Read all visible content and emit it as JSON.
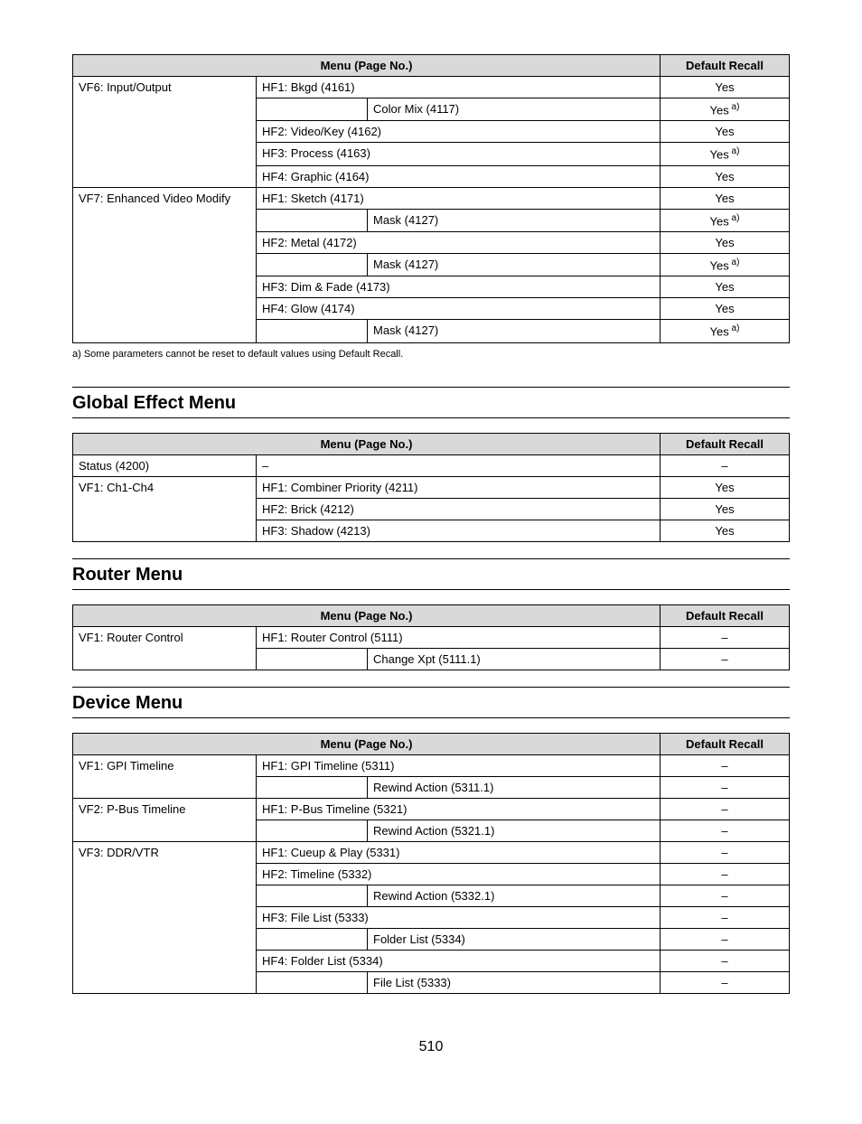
{
  "table1": {
    "headers": {
      "menu": "Menu (Page No.)",
      "recall": "Default Recall"
    },
    "rows": [
      {
        "c1": "VF6: Input/Output",
        "c2": "HF1: Bkgd (4161)",
        "recall": "Yes",
        "c1rowspan": 5,
        "c2colspan": 2
      },
      {
        "indent": "Color Mix (4117)",
        "recall": "Yes",
        "sup": "a)"
      },
      {
        "c2": "HF2: Video/Key (4162)",
        "recall": "Yes",
        "c2colspan": 2
      },
      {
        "c2": "HF3: Process (4163)",
        "recall": "Yes",
        "sup": "a)",
        "c2colspan": 2
      },
      {
        "c2": "HF4: Graphic (4164)",
        "recall": "Yes",
        "c2colspan": 2
      },
      {
        "c1": "VF7: Enhanced Video Modify",
        "c2": "HF1: Sketch (4171)",
        "recall": "Yes",
        "c1rowspan": 7,
        "c2colspan": 2
      },
      {
        "indent": "Mask (4127)",
        "recall": "Yes",
        "sup": "a)"
      },
      {
        "c2": "HF2: Metal (4172)",
        "recall": "Yes",
        "c2colspan": 2
      },
      {
        "indent": "Mask (4127)",
        "recall": "Yes",
        "sup": "a)"
      },
      {
        "c2": "HF3: Dim & Fade (4173)",
        "recall": "Yes",
        "c2colspan": 2
      },
      {
        "c2": "HF4: Glow (4174)",
        "recall": "Yes",
        "c2colspan": 2
      },
      {
        "indent": "Mask (4127)",
        "recall": "Yes",
        "sup": "a)"
      }
    ],
    "footnote": "a) Some parameters cannot be reset to default values using Default Recall."
  },
  "section2": {
    "title": "Global Effect Menu"
  },
  "table2": {
    "headers": {
      "menu": "Menu (Page No.)",
      "recall": "Default Recall"
    },
    "rows": [
      {
        "c1": "Status (4200)",
        "c2": "–",
        "recall": "–",
        "c2colspan": 2
      },
      {
        "c1": "VF1: Ch1-Ch4",
        "c2": "HF1: Combiner Priority (4211)",
        "recall": "Yes",
        "c1rowspan": 3,
        "c2colspan": 2
      },
      {
        "c2": "HF2: Brick (4212)",
        "recall": "Yes",
        "c2colspan": 2
      },
      {
        "c2": "HF3: Shadow (4213)",
        "recall": "Yes",
        "c2colspan": 2
      }
    ]
  },
  "section3": {
    "title": "Router Menu"
  },
  "table3": {
    "headers": {
      "menu": "Menu (Page No.)",
      "recall": "Default Recall"
    },
    "rows": [
      {
        "c1": "VF1: Router Control",
        "c2": "HF1: Router Control (5111)",
        "recall": "–",
        "c1rowspan": 2,
        "c2colspan": 2
      },
      {
        "indent": "Change Xpt (5111.1)",
        "recall": "–"
      }
    ]
  },
  "section4": {
    "title": "Device Menu"
  },
  "table4": {
    "headers": {
      "menu": "Menu (Page No.)",
      "recall": "Default Recall"
    },
    "rows": [
      {
        "c1": "VF1: GPI Timeline",
        "c2": "HF1: GPI Timeline (5311)",
        "recall": "–",
        "c1rowspan": 2,
        "c2colspan": 2
      },
      {
        "indent": "Rewind Action (5311.1)",
        "recall": "–"
      },
      {
        "c1": "VF2: P-Bus Timeline",
        "c2": "HF1: P-Bus Timeline (5321)",
        "recall": "–",
        "c1rowspan": 2,
        "c2colspan": 2
      },
      {
        "indent": "Rewind Action (5321.1)",
        "recall": "–"
      },
      {
        "c1": "VF3: DDR/VTR",
        "c2": "HF1: Cueup & Play (5331)",
        "recall": "–",
        "c1rowspan": 7,
        "c2colspan": 2
      },
      {
        "c2": "HF2: Timeline (5332)",
        "recall": "–",
        "c2colspan": 2
      },
      {
        "indent": "Rewind Action (5332.1)",
        "recall": "–"
      },
      {
        "c2": "HF3: File List (5333)",
        "recall": "–",
        "c2colspan": 2
      },
      {
        "indent": "Folder List (5334)",
        "recall": "–"
      },
      {
        "c2": "HF4: Folder List (5334)",
        "recall": "–",
        "c2colspan": 2
      },
      {
        "indent": "File List (5333)",
        "recall": "–"
      }
    ]
  },
  "pagenum": "510"
}
